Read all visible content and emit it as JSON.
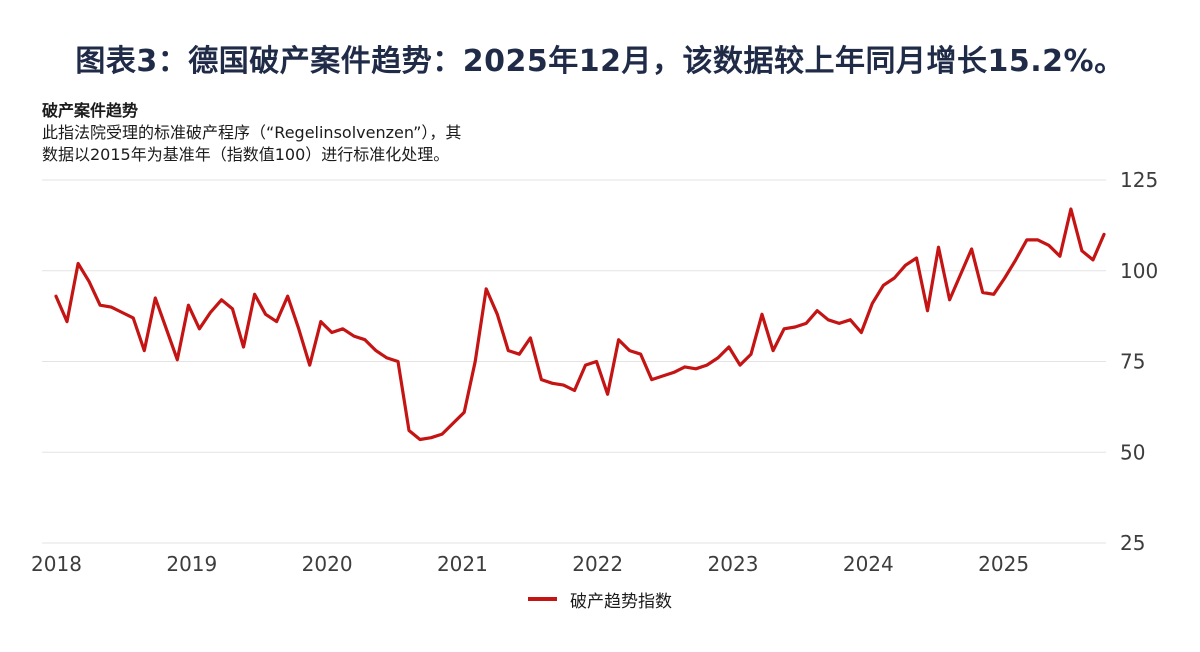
{
  "page": {
    "title": "图表3：德国破产案件趋势：2025年12月，该数据较上年同月增长15.2%。"
  },
  "chart_header": {
    "title": "破产案件趋势",
    "subtitle_line1": "此指法院受理的标准破产程序（“Regelinsolvenzen”），其",
    "subtitle_line2": "数据以2015年为基准年（指数值100）进行标准化处理。"
  },
  "chart_data": {
    "type": "line",
    "title": "破产案件趋势",
    "x_tick_labels": [
      "2018",
      "2019",
      "2020",
      "2021",
      "2022",
      "2023",
      "2024",
      "2025"
    ],
    "y_ticks": [
      25,
      50,
      75,
      100,
      125
    ],
    "ylim": [
      25,
      125
    ],
    "grid": true,
    "legend_position": "bottom",
    "x_frequency": "monthly",
    "series": [
      {
        "name": "破产趋势指数",
        "color": "#c41414",
        "values": [
          93,
          86,
          102,
          97,
          90.5,
          90,
          88.5,
          87,
          78,
          92.5,
          84,
          75.5,
          90.5,
          84,
          88.5,
          92,
          89.5,
          79,
          93.5,
          88,
          86,
          93,
          84,
          74,
          86,
          83,
          84,
          82,
          81,
          78,
          76,
          75,
          56,
          53.5,
          54,
          55,
          58,
          61,
          75,
          95,
          88,
          78,
          77,
          81.5,
          70,
          69,
          68.5,
          67,
          74,
          75,
          66,
          81,
          78,
          77,
          70,
          71,
          72,
          73.5,
          73,
          74,
          76,
          79,
          74,
          77,
          88,
          78,
          84,
          84.5,
          85.5,
          89,
          86.5,
          85.5,
          86.5,
          83,
          91,
          96,
          98,
          101.5,
          103.5,
          89,
          106.5,
          92,
          99,
          106,
          94,
          93.5,
          98,
          103,
          108.5,
          108.5,
          107,
          104,
          117,
          105.5,
          103,
          110
        ]
      }
    ],
    "legend": [
      {
        "label": "破产趋势指数",
        "color": "#c41414"
      }
    ]
  },
  "colors": {
    "title_text": "#1f2b47",
    "line": "#c41414",
    "axis_text": "#3d3d3d",
    "gridline": "#e3e3e3",
    "background": "#ffffff"
  }
}
